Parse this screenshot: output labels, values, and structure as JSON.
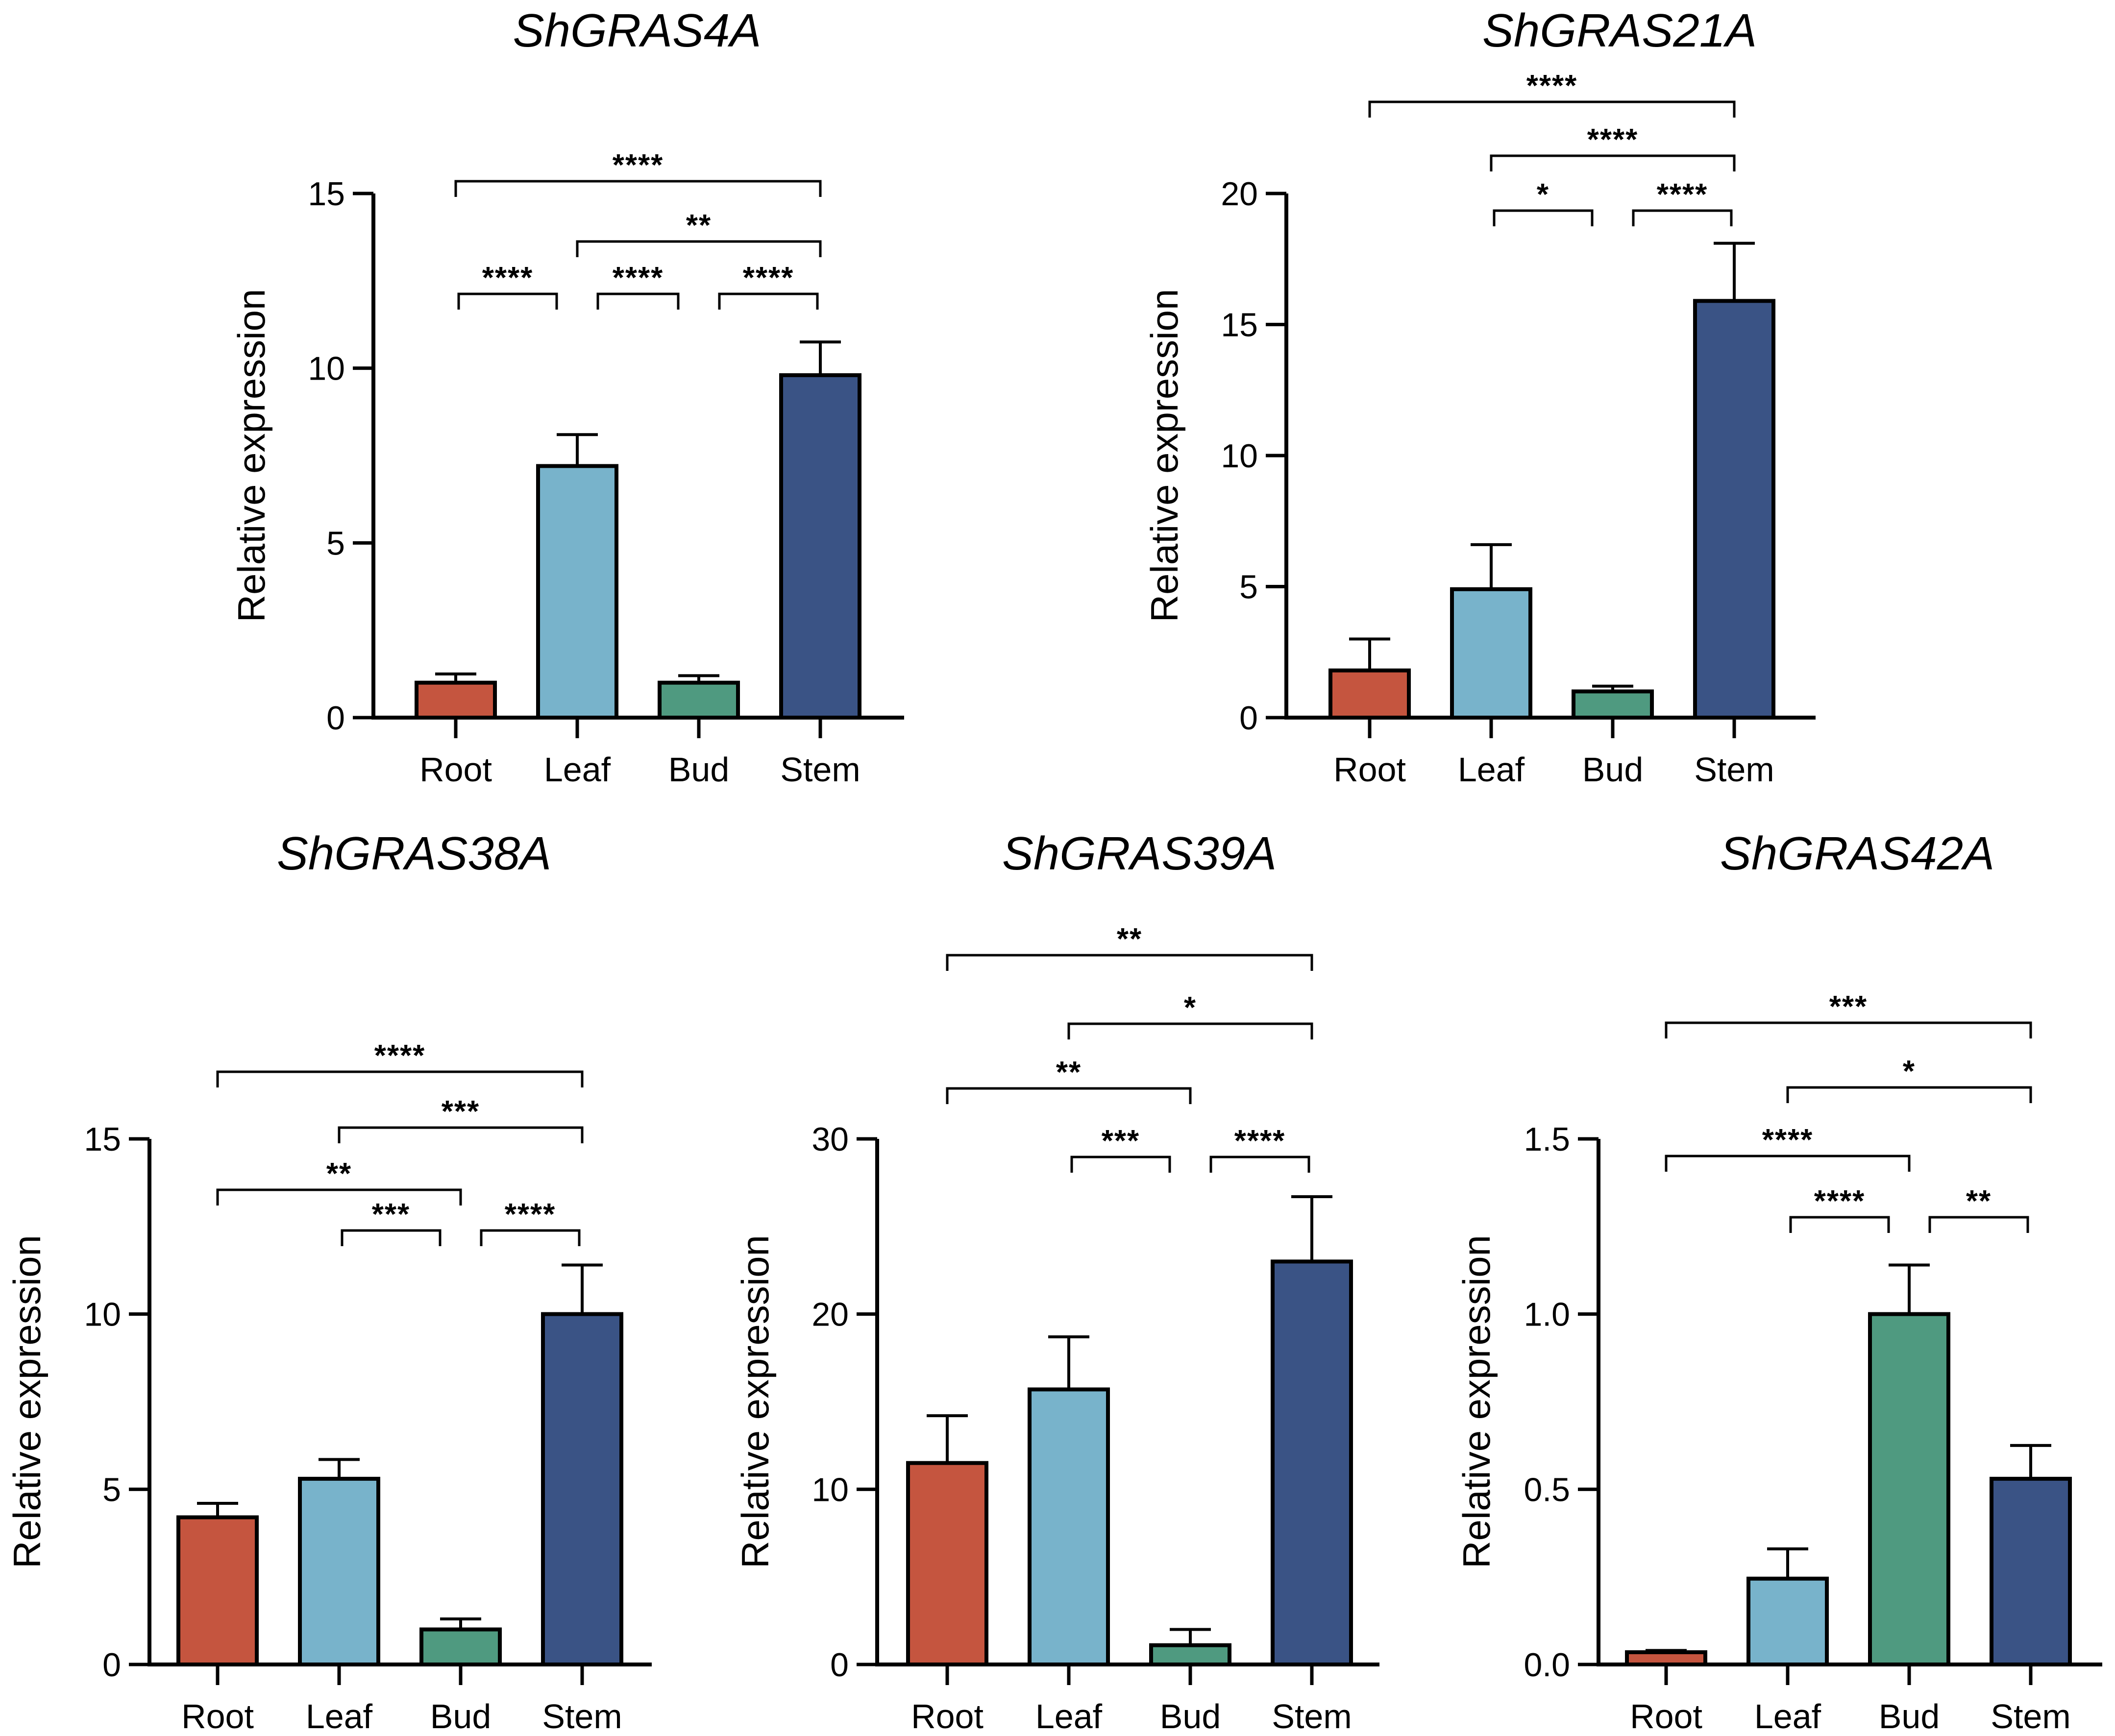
{
  "figure_colors": {
    "Root": "#c5553f",
    "Leaf": "#78b3cb",
    "Bud": "#4f9a80",
    "Stem": "#3a5385",
    "stroke": "#000000"
  },
  "chart_data": [
    {
      "type": "bar",
      "title": "ShGRAS4A",
      "xlabel": "",
      "ylabel": "Relative expression",
      "categories": [
        "Root",
        "Leaf",
        "Bud",
        "Stem"
      ],
      "values": [
        1.0,
        7.2,
        1.0,
        9.8
      ],
      "errors": [
        0.25,
        0.9,
        0.2,
        0.95
      ],
      "ylim": [
        0,
        15
      ],
      "yticks": [
        0,
        5,
        10,
        15
      ],
      "ytick_labels": [
        "0",
        "5",
        "10",
        "15"
      ],
      "grid": false,
      "significance": [
        {
          "from": "Root",
          "to": "Stem",
          "label": "****"
        },
        {
          "from": "Leaf",
          "to": "Stem",
          "label": "**"
        },
        {
          "from": "Root",
          "to": "Leaf",
          "label": "****"
        },
        {
          "from": "Leaf",
          "to": "Bud",
          "label": "****"
        },
        {
          "from": "Bud",
          "to": "Stem",
          "label": "****"
        }
      ]
    },
    {
      "type": "bar",
      "title": "ShGRAS21A",
      "xlabel": "",
      "ylabel": "Relative expression",
      "categories": [
        "Root",
        "Leaf",
        "Bud",
        "Stem"
      ],
      "values": [
        1.8,
        4.9,
        1.0,
        15.9
      ],
      "errors": [
        1.2,
        1.7,
        0.2,
        2.2
      ],
      "ylim": [
        0,
        20
      ],
      "yticks": [
        0,
        5,
        10,
        15,
        20
      ],
      "ytick_labels": [
        "0",
        "5",
        "10",
        "15",
        "20"
      ],
      "grid": false,
      "significance": [
        {
          "from": "Root",
          "to": "Stem",
          "label": "****"
        },
        {
          "from": "Leaf",
          "to": "Stem",
          "label": "****"
        },
        {
          "from": "Leaf",
          "to": "Bud",
          "label": "*"
        },
        {
          "from": "Bud",
          "to": "Stem",
          "label": "****"
        }
      ]
    },
    {
      "type": "bar",
      "title": "ShGRAS38A",
      "xlabel": "",
      "ylabel": "Relative expression",
      "categories": [
        "Root",
        "Leaf",
        "Bud",
        "Stem"
      ],
      "values": [
        4.2,
        5.3,
        1.0,
        10.0
      ],
      "errors": [
        0.4,
        0.55,
        0.3,
        1.4
      ],
      "ylim": [
        0,
        15
      ],
      "yticks": [
        0,
        5,
        10,
        15
      ],
      "ytick_labels": [
        "0",
        "5",
        "10",
        "15"
      ],
      "grid": false,
      "significance": [
        {
          "from": "Root",
          "to": "Stem",
          "label": "****"
        },
        {
          "from": "Leaf",
          "to": "Stem",
          "label": "***"
        },
        {
          "from": "Root",
          "to": "Bud",
          "label": "**"
        },
        {
          "from": "Leaf",
          "to": "Bud",
          "label": "***"
        },
        {
          "from": "Bud",
          "to": "Stem",
          "label": "****"
        }
      ]
    },
    {
      "type": "bar",
      "title": "ShGRAS39A",
      "xlabel": "",
      "ylabel": "Relative expression",
      "categories": [
        "Root",
        "Leaf",
        "Bud",
        "Stem"
      ],
      "values": [
        11.5,
        15.7,
        1.1,
        23.0
      ],
      "errors": [
        2.7,
        3.0,
        0.9,
        3.7
      ],
      "ylim": [
        0,
        30
      ],
      "yticks": [
        0,
        10,
        20,
        30
      ],
      "ytick_labels": [
        "0",
        "10",
        "20",
        "30"
      ],
      "grid": false,
      "significance": [
        {
          "from": "Root",
          "to": "Stem",
          "label": "**"
        },
        {
          "from": "Leaf",
          "to": "Stem",
          "label": "*"
        },
        {
          "from": "Root",
          "to": "Bud",
          "label": "**"
        },
        {
          "from": "Leaf",
          "to": "Bud",
          "label": "***"
        },
        {
          "from": "Bud",
          "to": "Stem",
          "label": "****"
        }
      ]
    },
    {
      "type": "bar",
      "title": "ShGRAS42A",
      "xlabel": "",
      "ylabel": "Relative expression",
      "categories": [
        "Root",
        "Leaf",
        "Bud",
        "Stem"
      ],
      "values": [
        0.035,
        0.245,
        1.0,
        0.53
      ],
      "errors": [
        0.005,
        0.085,
        0.14,
        0.095
      ],
      "ylim": [
        0,
        1.5
      ],
      "yticks": [
        0,
        0.5,
        1.0,
        1.5
      ],
      "ytick_labels": [
        "0.0",
        "0.5",
        "1.0",
        "1.5"
      ],
      "grid": false,
      "significance": [
        {
          "from": "Root",
          "to": "Stem",
          "label": "***"
        },
        {
          "from": "Leaf",
          "to": "Stem",
          "label": "*"
        },
        {
          "from": "Root",
          "to": "Bud",
          "label": "****"
        },
        {
          "from": "Leaf",
          "to": "Bud",
          "label": "****"
        },
        {
          "from": "Bud",
          "to": "Stem",
          "label": "**"
        }
      ]
    }
  ]
}
